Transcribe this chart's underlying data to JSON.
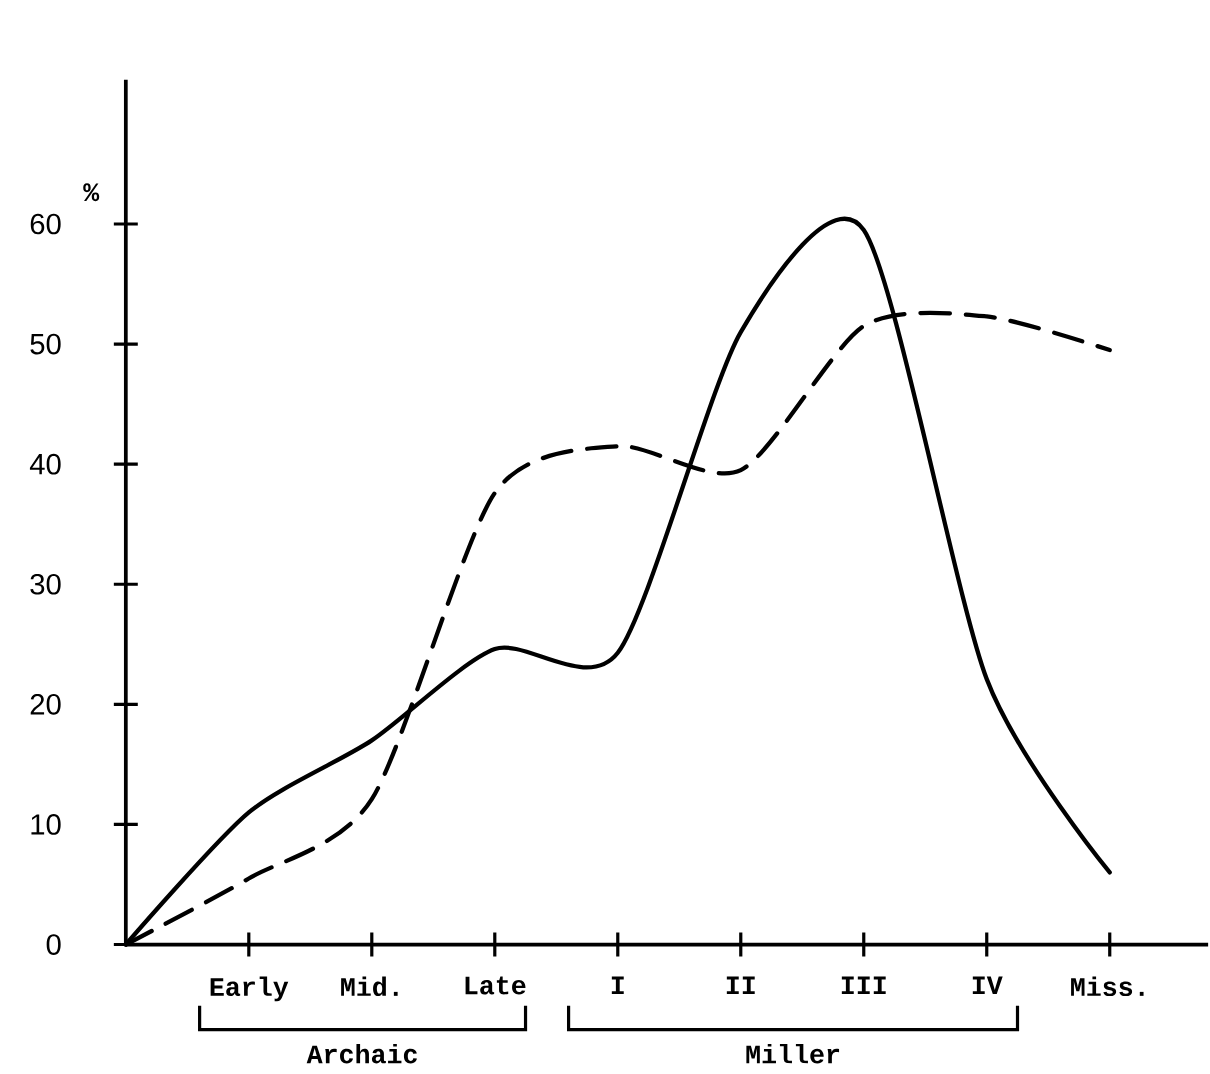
{
  "chart_data": {
    "type": "line",
    "ylabel": "%",
    "ylim": [
      0,
      72
    ],
    "categories": [
      null,
      "Early",
      "Mid.",
      "Late",
      "I",
      "II",
      "III",
      "IV",
      "Miss."
    ],
    "yticks": [
      0,
      10,
      20,
      30,
      40,
      50,
      60
    ],
    "annotations": [
      "Archaic",
      "Miller"
    ],
    "marker": "none",
    "series": [
      {
        "color": "#000000",
        "line_style": "solid",
        "values": [
          0,
          11,
          17,
          24.6,
          24.3,
          51,
          59.5,
          22.1,
          6
        ]
      },
      {
        "color": "#000000",
        "line_style": "dashed",
        "values": [
          0,
          5.5,
          12.1,
          37.6,
          41.5,
          39.5,
          51.5,
          52.3,
          49.5
        ]
      }
    ]
  }
}
